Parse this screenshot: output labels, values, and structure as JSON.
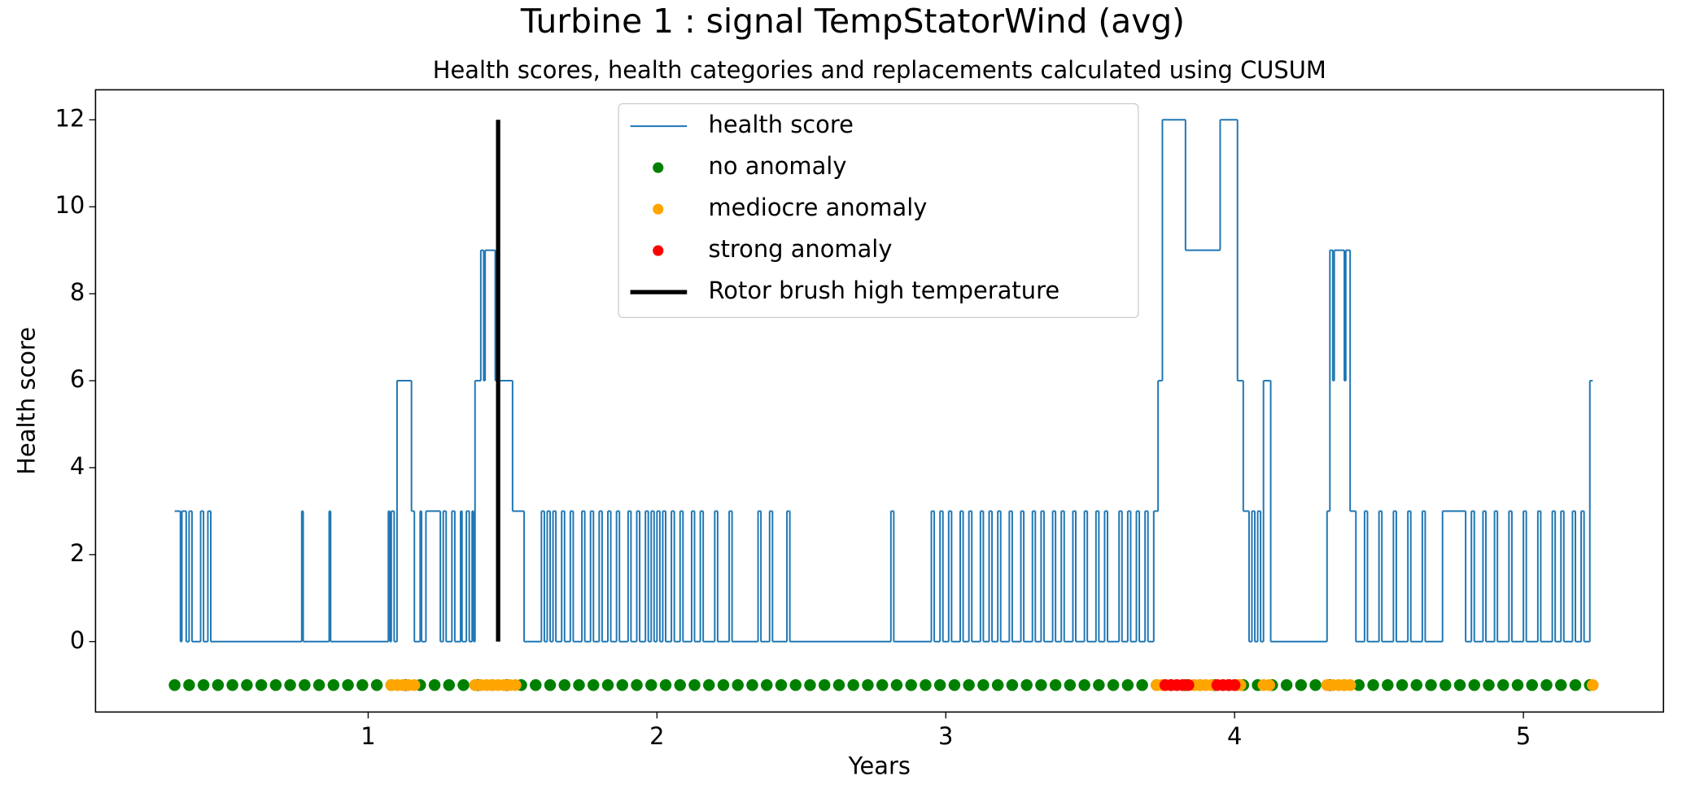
{
  "chart_data": {
    "type": "line",
    "title": "Turbine 1 : signal TempStatorWind (avg)",
    "subtitle": "Health scores, health categories and replacements calculated using CUSUM",
    "x_label": "Years",
    "y_label": "Health score",
    "xlim": [
      0.056,
      5.485
    ],
    "ylim": [
      -1.62,
      12.69
    ],
    "xticks": [
      1,
      2,
      3,
      4,
      5
    ],
    "yticks": [
      0,
      2,
      4,
      6,
      8,
      10,
      12
    ],
    "legend": "upper center",
    "series": [
      {
        "name": "health score",
        "type": "step",
        "color": "#1f77b4",
        "x": [
          0.33,
          0.35,
          0.355,
          0.37,
          0.38,
          0.39,
          0.42,
          0.43,
          0.445,
          0.455,
          0.77,
          0.775,
          0.865,
          0.87,
          1.07,
          1.075,
          1.08,
          1.09,
          1.1,
          1.15,
          1.16,
          1.18,
          1.185,
          1.2,
          1.25,
          1.26,
          1.27,
          1.29,
          1.3,
          1.32,
          1.325,
          1.34,
          1.35,
          1.36,
          1.365,
          1.37,
          1.39,
          1.4,
          1.405,
          1.44,
          1.5,
          1.54,
          1.6,
          1.61,
          1.62,
          1.63,
          1.64,
          1.65,
          1.67,
          1.68,
          1.7,
          1.71,
          1.74,
          1.75,
          1.77,
          1.78,
          1.8,
          1.81,
          1.83,
          1.84,
          1.86,
          1.87,
          1.9,
          1.91,
          1.93,
          1.94,
          1.96,
          1.97,
          1.98,
          1.99,
          2.0,
          2.01,
          2.02,
          2.03,
          2.05,
          2.06,
          2.08,
          2.09,
          2.12,
          2.13,
          2.15,
          2.16,
          2.2,
          2.21,
          2.25,
          2.26,
          2.35,
          2.36,
          2.39,
          2.4,
          2.45,
          2.46,
          2.81,
          2.82,
          2.95,
          2.96,
          2.98,
          2.99,
          3.01,
          3.02,
          3.05,
          3.06,
          3.08,
          3.09,
          3.12,
          3.13,
          3.15,
          3.16,
          3.18,
          3.19,
          3.22,
          3.23,
          3.26,
          3.27,
          3.3,
          3.31,
          3.33,
          3.34,
          3.37,
          3.38,
          3.4,
          3.41,
          3.44,
          3.45,
          3.48,
          3.49,
          3.52,
          3.53,
          3.55,
          3.56,
          3.6,
          3.61,
          3.63,
          3.64,
          3.66,
          3.67,
          3.69,
          3.7,
          3.72,
          3.735,
          3.75,
          3.83,
          3.95,
          4.01,
          4.03,
          4.05,
          4.06,
          4.07,
          4.08,
          4.09,
          4.1,
          4.125,
          4.32,
          4.33,
          4.34,
          4.345,
          4.38,
          4.385,
          4.4,
          4.42,
          4.45,
          4.46,
          4.5,
          4.51,
          4.55,
          4.56,
          4.6,
          4.61,
          4.65,
          4.66,
          4.72,
          4.8,
          4.82,
          4.83,
          4.86,
          4.87,
          4.9,
          4.91,
          4.95,
          4.96,
          5.0,
          5.01,
          5.05,
          5.06,
          5.1,
          5.11,
          5.13,
          5.14,
          5.17,
          5.18,
          5.2,
          5.21,
          5.23,
          5.24
        ],
        "values": [
          3,
          0,
          3,
          0,
          3,
          0,
          3,
          0,
          3,
          0,
          3,
          0,
          3,
          0,
          3,
          0,
          3,
          0,
          6,
          3,
          0,
          3,
          0,
          3,
          0,
          3,
          0,
          3,
          0,
          3,
          0,
          3,
          0,
          3,
          0,
          6,
          9,
          6,
          9,
          6,
          3,
          0,
          3,
          0,
          3,
          0,
          3,
          0,
          3,
          0,
          3,
          0,
          3,
          0,
          3,
          0,
          3,
          0,
          3,
          0,
          3,
          0,
          3,
          0,
          3,
          0,
          3,
          0,
          3,
          0,
          3,
          0,
          3,
          0,
          3,
          0,
          3,
          0,
          3,
          0,
          3,
          0,
          3,
          0,
          3,
          0,
          3,
          0,
          3,
          0,
          3,
          0,
          3,
          0,
          3,
          0,
          3,
          0,
          3,
          0,
          3,
          0,
          3,
          0,
          3,
          0,
          3,
          0,
          3,
          0,
          3,
          0,
          3,
          0,
          3,
          0,
          3,
          0,
          3,
          0,
          3,
          0,
          3,
          0,
          3,
          0,
          3,
          0,
          3,
          0,
          3,
          0,
          3,
          0,
          3,
          0,
          3,
          0,
          3,
          6,
          12,
          9,
          12,
          6,
          3,
          0,
          3,
          0,
          3,
          0,
          6,
          0,
          3,
          9,
          6,
          9,
          6,
          9,
          3,
          0,
          3,
          0,
          3,
          0,
          3,
          0,
          3,
          0,
          3,
          0,
          3,
          0,
          3,
          0,
          3,
          0,
          3,
          0,
          3,
          0,
          3,
          0,
          3,
          0,
          3,
          0,
          3,
          0,
          3,
          0,
          3,
          0,
          6,
          6
        ]
      },
      {
        "name": "no anomaly",
        "type": "scatter",
        "color": "green",
        "x": [
          0.33,
          0.38,
          0.43,
          0.48,
          0.53,
          0.58,
          0.63,
          0.68,
          0.73,
          0.78,
          0.83,
          0.88,
          0.93,
          0.98,
          1.03,
          1.08,
          1.13,
          1.18,
          1.23,
          1.28,
          1.33,
          1.38,
          1.43,
          1.48,
          1.53,
          1.58,
          1.63,
          1.68,
          1.73,
          1.78,
          1.83,
          1.88,
          1.93,
          1.98,
          2.03,
          2.08,
          2.13,
          2.18,
          2.23,
          2.28,
          2.33,
          2.38,
          2.43,
          2.48,
          2.53,
          2.58,
          2.63,
          2.68,
          2.73,
          2.78,
          2.83,
          2.88,
          2.93,
          2.98,
          3.03,
          3.08,
          3.13,
          3.18,
          3.23,
          3.28,
          3.33,
          3.38,
          3.43,
          3.48,
          3.53,
          3.58,
          3.63,
          3.68,
          3.73,
          3.78,
          3.83,
          3.88,
          3.93,
          3.98,
          4.03,
          4.08,
          4.13,
          4.18,
          4.23,
          4.28,
          4.33,
          4.38,
          4.43,
          4.48,
          4.53,
          4.58,
          4.63,
          4.68,
          4.73,
          4.78,
          4.83,
          4.88,
          4.93,
          4.98,
          5.03,
          5.08,
          5.13,
          5.18,
          5.23
        ],
        "values": [
          -1,
          -1,
          -1,
          -1,
          -1,
          -1,
          -1,
          -1,
          -1,
          -1,
          -1,
          -1,
          -1,
          -1,
          -1,
          -1,
          -1,
          -1,
          -1,
          -1,
          -1,
          -1,
          -1,
          -1,
          -1,
          -1,
          -1,
          -1,
          -1,
          -1,
          -1,
          -1,
          -1,
          -1,
          -1,
          -1,
          -1,
          -1,
          -1,
          -1,
          -1,
          -1,
          -1,
          -1,
          -1,
          -1,
          -1,
          -1,
          -1,
          -1,
          -1,
          -1,
          -1,
          -1,
          -1,
          -1,
          -1,
          -1,
          -1,
          -1,
          -1,
          -1,
          -1,
          -1,
          -1,
          -1,
          -1,
          -1,
          -1,
          -1,
          -1,
          -1,
          -1,
          -1,
          -1,
          -1,
          -1,
          -1,
          -1,
          -1,
          -1,
          -1,
          -1,
          -1,
          -1,
          -1,
          -1,
          -1,
          -1,
          -1,
          -1,
          -1,
          -1,
          -1,
          -1,
          -1,
          -1,
          -1,
          -1
        ]
      },
      {
        "name": "mediocre anomaly",
        "type": "scatter",
        "color": "orange",
        "x": [
          1.08,
          1.1,
          1.12,
          1.14,
          1.16,
          1.37,
          1.39,
          1.41,
          1.43,
          1.45,
          1.47,
          1.49,
          1.51,
          3.73,
          3.75,
          3.86,
          3.88,
          3.9,
          3.92,
          4.01,
          4.02,
          4.1,
          4.12,
          4.32,
          4.34,
          4.36,
          4.38,
          4.4,
          5.24
        ],
        "values": [
          -1,
          -1,
          -1,
          -1,
          -1,
          -1,
          -1,
          -1,
          -1,
          -1,
          -1,
          -1,
          -1,
          -1,
          -1,
          -1,
          -1,
          -1,
          -1,
          -1,
          -1,
          -1,
          -1,
          -1,
          -1,
          -1,
          -1,
          -1,
          -1
        ]
      },
      {
        "name": "strong anomaly",
        "type": "scatter",
        "color": "red",
        "x": [
          3.76,
          3.78,
          3.8,
          3.82,
          3.84,
          3.94,
          3.96,
          3.98,
          4.0
        ],
        "values": [
          -1,
          -1,
          -1,
          -1,
          -1,
          -1,
          -1,
          -1,
          -1
        ]
      },
      {
        "name": "Rotor brush high temperature",
        "type": "vline",
        "color": "black",
        "x": [
          1.45,
          1.45
        ],
        "values": [
          0,
          12
        ]
      }
    ]
  }
}
